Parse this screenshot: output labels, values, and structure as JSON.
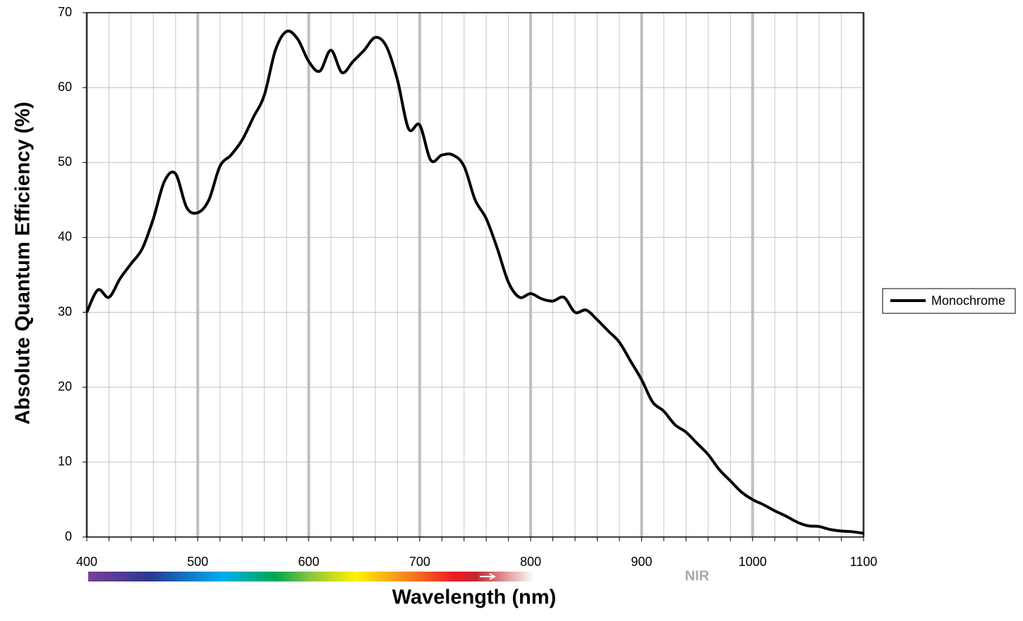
{
  "chart_data": {
    "type": "line",
    "x_label": "Wavelength (nm)",
    "y_label": "Absolute Quantum Efficiency (%)",
    "annotation": "NIR",
    "x": [
      400,
      410,
      420,
      430,
      440,
      450,
      460,
      470,
      480,
      490,
      500,
      510,
      520,
      530,
      540,
      550,
      560,
      570,
      580,
      590,
      600,
      610,
      620,
      630,
      640,
      650,
      660,
      670,
      680,
      690,
      700,
      710,
      720,
      730,
      740,
      750,
      760,
      770,
      780,
      790,
      800,
      810,
      820,
      830,
      840,
      850,
      860,
      870,
      880,
      890,
      900,
      910,
      920,
      930,
      940,
      950,
      960,
      970,
      980,
      990,
      1000,
      1010,
      1020,
      1030,
      1040,
      1050,
      1060,
      1070,
      1080,
      1090,
      1100
    ],
    "series": [
      {
        "name": "Monochrome",
        "color": "#000000",
        "values": [
          30,
          33,
          32,
          34.5,
          36.5,
          38.5,
          42.5,
          47.5,
          48.5,
          44,
          43.3,
          45,
          49.5,
          51,
          53,
          56,
          59,
          65,
          67.5,
          66.5,
          63.5,
          62.2,
          65,
          62,
          63.5,
          65,
          66.7,
          65.5,
          61,
          54.5,
          55,
          50.3,
          51,
          51,
          49.5,
          45,
          42.5,
          38.5,
          34,
          32,
          32.5,
          31.8,
          31.5,
          32,
          30,
          30.3,
          29,
          27.5,
          26,
          23.5,
          21,
          18,
          16.8,
          15,
          14,
          12.5,
          11,
          9,
          7.5,
          6,
          5,
          4.3,
          3.5,
          2.8,
          2,
          1.5,
          1.4,
          1,
          0.8,
          0.7,
          0.5
        ]
      }
    ],
    "xlim": [
      400,
      1100
    ],
    "xticks": [
      400,
      500,
      600,
      700,
      800,
      900,
      1000,
      1100
    ],
    "xminorticks": [
      420,
      440,
      460,
      480,
      520,
      540,
      560,
      580,
      620,
      640,
      660,
      680,
      720,
      740,
      760,
      780,
      820,
      840,
      860,
      880,
      920,
      940,
      960,
      980,
      1020,
      1040,
      1060,
      1080
    ],
    "ylim": [
      0,
      70
    ],
    "yticks": [
      0,
      10,
      20,
      30,
      40,
      50,
      60,
      70
    ],
    "grid": true,
    "legend": "right"
  }
}
